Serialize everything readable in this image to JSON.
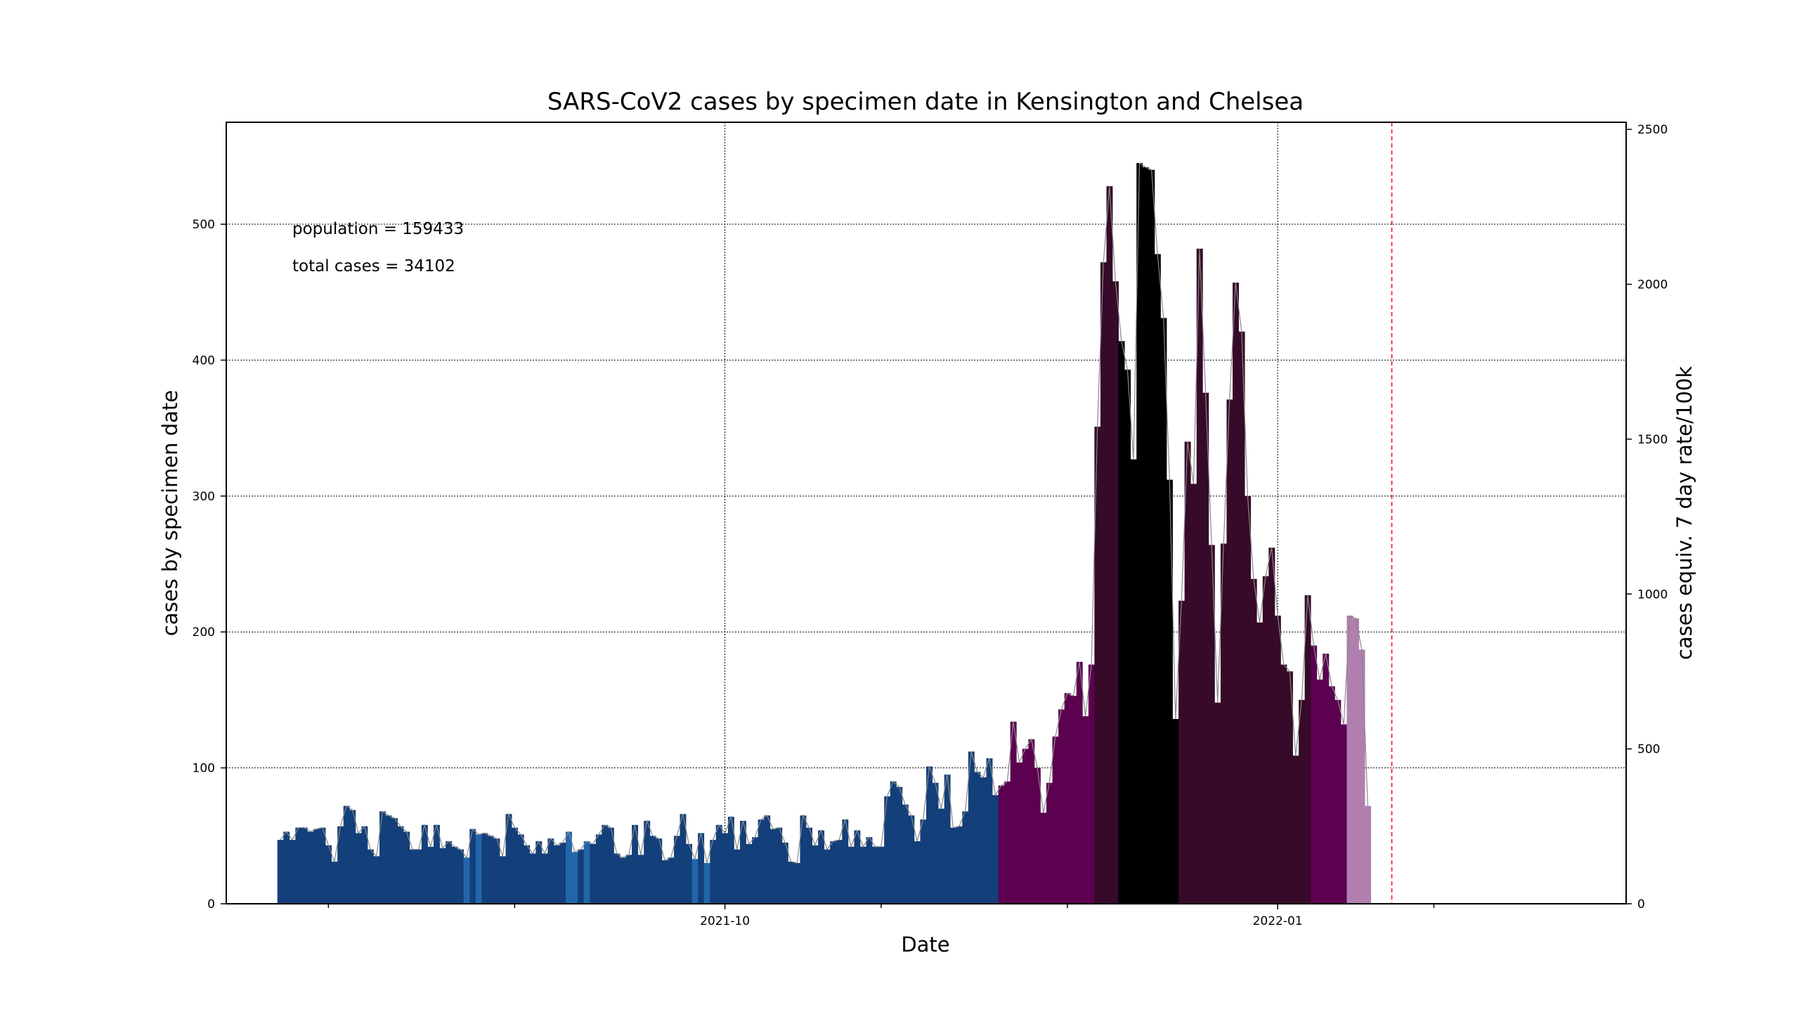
{
  "chart_data": {
    "type": "bar",
    "title": "SARS-CoV2 cases by specimen date in Kensington and Chelsea",
    "xlabel": "Date",
    "ylabel": "cases by specimen date",
    "ylabel_right": "cases equiv. 7 day rate/100k",
    "annotations": [
      "population = 159433",
      "total cases = 34102"
    ],
    "x_start": "2021-07-19",
    "x_ticks": [
      {
        "date": "2021-10-01",
        "label": "2021-10"
      },
      {
        "date": "2022-01-01",
        "label": "2022-01"
      }
    ],
    "x_minor_tick_dates": [
      "2021-07-27",
      "2021-08-27",
      "2021-10-27",
      "2021-11-27",
      "2022-01-27"
    ],
    "xlim": [
      "2021-07-10",
      "2022-02-28"
    ],
    "ylim": [
      0,
      575
    ],
    "y_ticks": [
      0,
      100,
      200,
      300,
      400,
      500
    ],
    "ylim_right": [
      0,
      2523
    ],
    "y_ticks_right": [
      0,
      500,
      1000,
      1500,
      2000,
      2500
    ],
    "grid": true,
    "marker_date": "2022-01-20",
    "colors": {
      "low": "#133f7a",
      "dip": "#2266aa",
      "mid": "#5c0050",
      "high": "#360a28",
      "peak": "#000000",
      "incomplete": "#b07fae",
      "trend_line": "#888888",
      "marker_line": "#ff0000"
    },
    "values": [
      47,
      53,
      47,
      56,
      56,
      53,
      55,
      56,
      43,
      31,
      57,
      72,
      69,
      52,
      57,
      40,
      35,
      68,
      65,
      63,
      57,
      53,
      40,
      40,
      58,
      42,
      58,
      41,
      46,
      42,
      40,
      34,
      55,
      51,
      52,
      50,
      48,
      35,
      66,
      56,
      51,
      43,
      37,
      46,
      37,
      48,
      43,
      45,
      53,
      38,
      40,
      46,
      44,
      51,
      58,
      56,
      37,
      34,
      36,
      58,
      36,
      61,
      50,
      48,
      32,
      34,
      50,
      66,
      44,
      33,
      52,
      30,
      47,
      58,
      52,
      64,
      40,
      61,
      44,
      49,
      62,
      65,
      55,
      56,
      45,
      31,
      30,
      65,
      56,
      43,
      54,
      40,
      46,
      47,
      62,
      42,
      54,
      42,
      49,
      42,
      42,
      79,
      90,
      86,
      73,
      65,
      46,
      62,
      101,
      89,
      70,
      95,
      56,
      57,
      68,
      112,
      97,
      93,
      107,
      80,
      87,
      90,
      134,
      104,
      114,
      121,
      100,
      67,
      89,
      123,
      143,
      155,
      153,
      178,
      138,
      176,
      351,
      472,
      528,
      458,
      414,
      393,
      327,
      545,
      542,
      540,
      478,
      431,
      312,
      136,
      223,
      340,
      309,
      482,
      376,
      264,
      148,
      265,
      371,
      457,
      421,
      300,
      239,
      207,
      241,
      262,
      212,
      176,
      171,
      109,
      150,
      227,
      190,
      165,
      184,
      160,
      150,
      132,
      212,
      210,
      187,
      72
    ],
    "levels": [
      "low",
      "low",
      "low",
      "low",
      "low",
      "low",
      "low",
      "low",
      "low",
      "low",
      "low",
      "low",
      "low",
      "low",
      "low",
      "low",
      "low",
      "low",
      "low",
      "low",
      "low",
      "low",
      "low",
      "low",
      "low",
      "low",
      "low",
      "low",
      "low",
      "low",
      "low",
      "dip",
      "low",
      "dip",
      "low",
      "low",
      "low",
      "low",
      "low",
      "low",
      "low",
      "low",
      "low",
      "low",
      "low",
      "low",
      "low",
      "low",
      "dip",
      "dip",
      "low",
      "dip",
      "low",
      "low",
      "low",
      "low",
      "low",
      "low",
      "low",
      "low",
      "low",
      "low",
      "low",
      "low",
      "low",
      "low",
      "low",
      "low",
      "low",
      "dip",
      "low",
      "dip",
      "low",
      "low",
      "low",
      "low",
      "low",
      "low",
      "low",
      "low",
      "low",
      "low",
      "low",
      "low",
      "low",
      "low",
      "low",
      "low",
      "low",
      "low",
      "low",
      "low",
      "low",
      "low",
      "low",
      "low",
      "low",
      "low",
      "low",
      "low",
      "low",
      "low",
      "low",
      "low",
      "low",
      "low",
      "low",
      "low",
      "low",
      "low",
      "low",
      "low",
      "low",
      "low",
      "low",
      "low",
      "low",
      "low",
      "low",
      "low",
      "mid",
      "mid",
      "mid",
      "mid",
      "mid",
      "mid",
      "mid",
      "mid",
      "mid",
      "mid",
      "mid",
      "mid",
      "mid",
      "mid",
      "mid",
      "mid",
      "high",
      "high",
      "high",
      "high",
      "peak",
      "peak",
      "peak",
      "peak",
      "peak",
      "peak",
      "peak",
      "peak",
      "peak",
      "peak",
      "high",
      "high",
      "high",
      "high",
      "high",
      "high",
      "high",
      "high",
      "high",
      "high",
      "high",
      "high",
      "high",
      "high",
      "high",
      "high",
      "high",
      "high",
      "high",
      "high",
      "high",
      "high",
      "mid",
      "mid",
      "mid",
      "mid",
      "mid",
      "mid",
      "incomplete",
      "incomplete",
      "incomplete",
      "incomplete",
      "incomplete"
    ]
  }
}
